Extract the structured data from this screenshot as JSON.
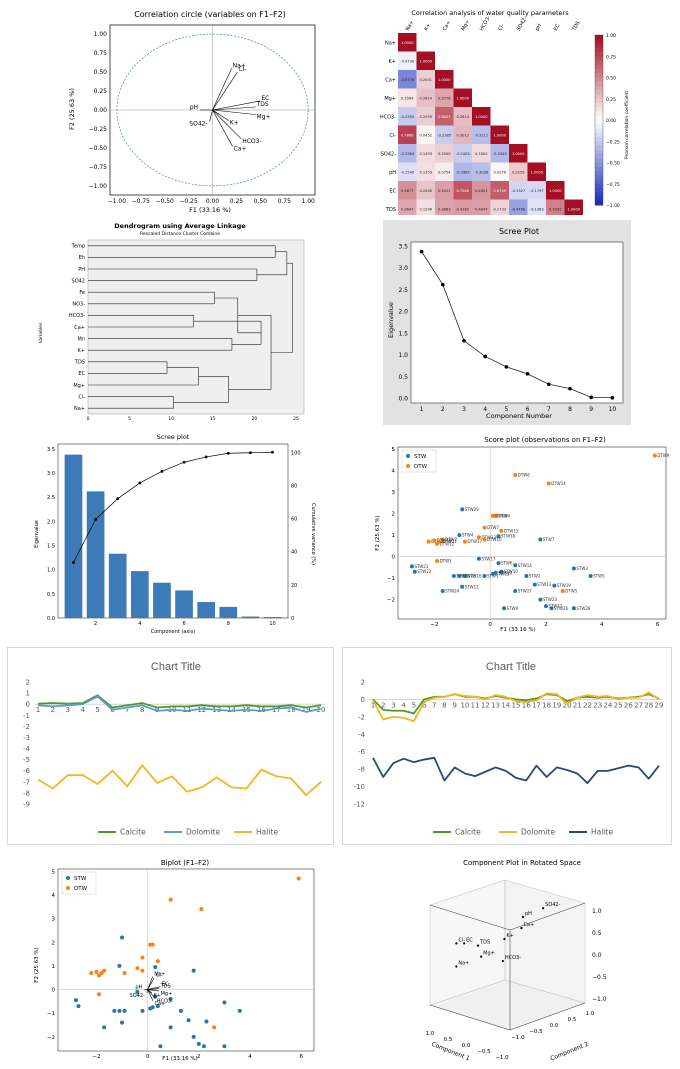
{
  "corr_circle": {
    "title": "Correlation circle (variables on F1–F2)",
    "xlabel": "F1 (33.16 %)",
    "ylabel": "F2 (25.63 %)",
    "ticks": [
      "−1.00",
      "−0.75",
      "−0.50",
      "−0.25",
      "0.00",
      "0.25",
      "0.50",
      "0.75",
      "1.00"
    ],
    "xticks": [
      "−1.00",
      "−0.75",
      "−0.50",
      "−0.25",
      "0.00",
      "0.25",
      "0.50",
      "0.75",
      "1.00"
    ]
  },
  "heatmap": {
    "title": "Correlation analysis of water quality parameters",
    "colorbar_label": "Pearson correlation coefficient",
    "cbar_ticks": [
      "1.00",
      "0.75",
      "0.50",
      "0.25",
      "0.00",
      "−0.25",
      "−0.50",
      "−0.75",
      "−1.00"
    ]
  },
  "dendrogram": {
    "title": "Dendrogram using Average Linkage",
    "subtitle": "Rescaled Distance Cluster Combine",
    "ylabel": "Variables",
    "xticks": [
      "0",
      "5",
      "10",
      "15",
      "20",
      "25"
    ]
  },
  "scree1": {
    "title": "Scree Plot",
    "xlabel": "Component Number",
    "ylabel": "Eigenvalue"
  },
  "scree2": {
    "title": "Scree plot",
    "xlabel": "Component (axis)",
    "ylabel": "Eigenvalue",
    "ylabel2": "Cumulative variance (%)"
  },
  "score": {
    "title": "Score plot (observations on F1–F2)",
    "xlabel": "F1 (33.16 %)",
    "ylabel": "F2 (25.63 %)",
    "legend": [
      "STW",
      "DTW"
    ]
  },
  "line1": {
    "title": "Chart Title",
    "legend": [
      "Calcite",
      "Dolomite",
      "Halite"
    ]
  },
  "line2": {
    "title": "Chart Title",
    "legend": [
      "Calcite",
      "Dolomite",
      "Halite"
    ]
  },
  "biplot": {
    "title": "Biplot (F1–F2)",
    "xlabel": "F1 (33.16 %)",
    "ylabel": "F2 (25.63 %)",
    "legend": [
      "STW",
      "DTW"
    ]
  },
  "comp3d": {
    "title": "Component Plot in Rotated Space",
    "xlabel": "Component 1",
    "ylabel": "Component 2"
  },
  "chart_data": [
    {
      "type": "scatter",
      "id": "correlation-circle",
      "title": "Correlation circle (variables on F1–F2)",
      "xlabel": "F1 (33.16 %)",
      "ylabel": "F2 (25.63 %)",
      "xlim": [
        -1,
        1
      ],
      "ylim": [
        -1,
        1
      ],
      "vectors": [
        {
          "name": "Na+",
          "x": 0.2,
          "y": 0.55
        },
        {
          "name": "Cl-",
          "x": 0.26,
          "y": 0.5
        },
        {
          "name": "EC",
          "x": 0.5,
          "y": 0.12
        },
        {
          "name": "TDS",
          "x": 0.45,
          "y": 0.04
        },
        {
          "name": "Mg+",
          "x": 0.45,
          "y": -0.06
        },
        {
          "name": "pH",
          "x": -0.13,
          "y": 0.0
        },
        {
          "name": "K+",
          "x": 0.17,
          "y": -0.14
        },
        {
          "name": "SO42-",
          "x": -0.03,
          "y": -0.15
        },
        {
          "name": "HCO3-",
          "x": 0.3,
          "y": -0.38
        },
        {
          "name": "Ca+",
          "x": 0.21,
          "y": -0.48
        }
      ]
    },
    {
      "type": "heatmap",
      "id": "correlation-heatmap",
      "title": "Correlation analysis of water quality parameters",
      "variables": [
        "Na+",
        "K+",
        "Ca+",
        "Mg+",
        "HCO3-",
        "Cl-",
        "SO42-",
        "pH",
        "EC",
        "TDS"
      ],
      "matrix": [
        [
          1.0
        ],
        [
          -0.073,
          1.0
        ],
        [
          -0.5776,
          0.2031,
          1.0
        ],
        [
          0.1064,
          0.2614,
          0.3776,
          1.0
        ],
        [
          -0.2505,
          0.2059,
          0.6627,
          0.2814,
          1.0
        ],
        [
          0.7866,
          0.0452,
          -0.2385,
          0.3012,
          -0.3111,
          1.0
        ],
        [
          -0.3363,
          0.1493,
          0.205,
          -0.2403,
          0.1604,
          -0.3343,
          1.0
        ],
        [
          -0.154,
          0.1359,
          0.0754,
          -0.3385,
          -0.3036,
          0.0276,
          0.2259,
          1.0
        ],
        [
          0.4677,
          0.244,
          0.4021,
          0.704,
          0.4401,
          0.6749,
          -0.1927,
          -0.1797,
          1.0
        ],
        [
          0.3647,
          0.1296,
          0.3883,
          0.4162,
          0.4047,
          0.1733,
          -0.4456,
          -0.1363,
          0.5292,
          1.0
        ]
      ],
      "range": [
        -1,
        1
      ]
    },
    {
      "type": "dendrogram",
      "id": "dendrogram",
      "title": "Dendrogram using Average Linkage",
      "subtitle": "Rescaled Distance Cluster Combine",
      "leaves": [
        "Temp",
        "Eh",
        "PH",
        "SO42",
        "Fe",
        "NO3-",
        "HCO3-",
        "Ca+",
        "Mn",
        "K+",
        "TDS",
        "EC",
        "Mg+",
        "Cl-",
        "Na+"
      ],
      "xlim": [
        0,
        25
      ],
      "merges": [
        {
          "a": 0,
          "b": 1,
          "h": 22.5
        },
        {
          "a": 2,
          "b": 3,
          "h": 20.3
        },
        {
          "a": 10,
          "b": 11,
          "h": 9.5
        },
        {
          "a": 13,
          "b": 14,
          "h": 10.3
        },
        {
          "a": 6,
          "b": 7,
          "h": 12.7
        },
        {
          "a": 4,
          "b": 5,
          "h": 15.2
        },
        {
          "a": 8,
          "b": 9,
          "h": 17.3
        },
        {
          "a": "10-11",
          "b": 12,
          "h": 13.3
        },
        {
          "a": "10-12",
          "b": "13-14",
          "h": 16.9
        },
        {
          "a": "6-7",
          "b": "8-9",
          "h": 20.8
        },
        {
          "a": "4-5",
          "b": "6-9",
          "h": 18.0
        },
        {
          "a": "4-9",
          "b": "10-14",
          "h": 22.0
        },
        {
          "a": "0-1",
          "b": "2-3",
          "h": 23.9
        },
        {
          "a": "0-3",
          "b": "4-14",
          "h": 24.6
        }
      ]
    },
    {
      "type": "line",
      "id": "scree-plot-1",
      "title": "Scree Plot",
      "xlabel": "Component Number",
      "ylabel": "Eigenvalue",
      "x": [
        1,
        2,
        3,
        4,
        5,
        6,
        7,
        8,
        9,
        10
      ],
      "values": [
        3.38,
        2.62,
        1.33,
        0.97,
        0.73,
        0.57,
        0.33,
        0.23,
        0.03,
        0.02
      ],
      "xlim": [
        0.5,
        10.5
      ],
      "ylim": [
        -0.1,
        3.6
      ]
    },
    {
      "type": "bar",
      "id": "scree-plot-2",
      "title": "Scree plot",
      "xlabel": "Component (axis)",
      "ylabel": "Eigenvalue",
      "ylabel2": "Cumulative variance (%)",
      "x": [
        1,
        2,
        3,
        4,
        5,
        6,
        7,
        8,
        9,
        10
      ],
      "values": [
        3.38,
        2.62,
        1.33,
        0.97,
        0.73,
        0.57,
        0.33,
        0.23,
        0.03,
        0.02
      ],
      "cumulative": [
        33.5,
        59.5,
        72.0,
        81.5,
        88.5,
        94.0,
        97.2,
        99.4,
        99.7,
        100
      ],
      "ylim": [
        0,
        3.6
      ],
      "ylim2": [
        0,
        105
      ]
    },
    {
      "type": "scatter",
      "id": "score-plot",
      "title": "Score plot (observations on F1–F2)",
      "xlabel": "F1 (33.16 %)",
      "ylabel": "F2 (25.63 %)",
      "xlim": [
        -3.3,
        6.3
      ],
      "ylim": [
        -2.9,
        5.1
      ],
      "series": [
        {
          "name": "STW",
          "color": "#1f77b4",
          "points": [
            {
              "l": "STW1",
              "x": -0.2,
              "y": -0.9
            },
            {
              "l": "STW2",
              "x": 1.3,
              "y": -0.9
            },
            {
              "l": "STW3",
              "x": 3.0,
              "y": -0.55
            },
            {
              "l": "STW4",
              "x": -1.1,
              "y": 1.0
            },
            {
              "l": "STW5",
              "x": 3.6,
              "y": -0.9
            },
            {
              "l": "STW6",
              "x": 0.3,
              "y": -0.3
            },
            {
              "l": "STW7",
              "x": 1.8,
              "y": 0.8
            },
            {
              "l": "STW8",
              "x": -1.3,
              "y": -0.9
            },
            {
              "l": "STW9",
              "x": 0.5,
              "y": -2.4
            },
            {
              "l": "STW10",
              "x": 0.4,
              "y": -0.7
            },
            {
              "l": "STW11",
              "x": -1.0,
              "y": -1.4
            },
            {
              "l": "STW12",
              "x": 2.0,
              "y": -2.3
            },
            {
              "l": "STW13",
              "x": 1.6,
              "y": -1.3
            },
            {
              "l": "STW14",
              "x": 0.9,
              "y": -0.4
            },
            {
              "l": "STW15",
              "x": 0.1,
              "y": -0.8
            },
            {
              "l": "STW16",
              "x": -0.9,
              "y": -0.9
            },
            {
              "l": "STW17",
              "x": -0.4,
              "y": -0.1
            },
            {
              "l": "STW18",
              "x": 0.3,
              "y": 0.95
            },
            {
              "l": "STW19",
              "x": 2.3,
              "y": -1.35
            },
            {
              "l": "STW20",
              "x": 0.2,
              "y": -0.75
            },
            {
              "l": "STW21",
              "x": -2.8,
              "y": -0.45
            },
            {
              "l": "STW22",
              "x": -2.7,
              "y": -0.7
            },
            {
              "l": "STW23",
              "x": 1.8,
              "y": -2.0
            },
            {
              "l": "STW24",
              "x": -1.7,
              "y": -1.6
            },
            {
              "l": "STW25",
              "x": -1.1,
              "y": -0.9
            },
            {
              "l": "STW26",
              "x": 2.2,
              "y": -2.4
            },
            {
              "l": "STW27",
              "x": 0.9,
              "y": -1.6
            },
            {
              "l": "STW28",
              "x": 3.0,
              "y": -2.4
            },
            {
              "l": "STW29",
              "x": -1.0,
              "y": 2.2
            }
          ]
        },
        {
          "name": "DTW",
          "color": "#ff7f0e",
          "points": [
            {
              "l": "DTW1",
              "x": -1.9,
              "y": -0.2
            },
            {
              "l": "DTW2",
              "x": -1.7,
              "y": 0.8
            },
            {
              "l": "DTW3",
              "x": -2.2,
              "y": 0.7
            },
            {
              "l": "DTW4",
              "x": 0.2,
              "y": 1.9
            },
            {
              "l": "DTW5",
              "x": 2.6,
              "y": -1.6
            },
            {
              "l": "DTW6",
              "x": 0.9,
              "y": 3.8
            },
            {
              "l": "DTW7",
              "x": -0.2,
              "y": 1.35
            },
            {
              "l": "DTW8",
              "x": 0.1,
              "y": 1.9
            },
            {
              "l": "DTW9",
              "x": 5.9,
              "y": 4.7
            },
            {
              "l": "DTW10",
              "x": -2.0,
              "y": 0.75
            },
            {
              "l": "DTW11",
              "x": -1.8,
              "y": 0.7
            },
            {
              "l": "DTW12",
              "x": -1.9,
              "y": 0.6
            },
            {
              "l": "DTW13",
              "x": -0.4,
              "y": 0.9
            },
            {
              "l": "DTW14",
              "x": 2.1,
              "y": 3.4
            },
            {
              "l": "DTW15",
              "x": 0.4,
              "y": 1.2
            },
            {
              "l": "DTW16",
              "x": -0.2,
              "y": 0.8
            },
            {
              "l": "DTW17",
              "x": -0.9,
              "y": 0.7
            }
          ]
        }
      ]
    },
    {
      "type": "line",
      "id": "saturation-index-1",
      "title": "Chart Title",
      "x": [
        1,
        2,
        3,
        4,
        5,
        6,
        7,
        8,
        9,
        10,
        11,
        12,
        13,
        14,
        15,
        16,
        17,
        18,
        19,
        20
      ],
      "ylim": [
        -9,
        2
      ],
      "series": [
        {
          "name": "Calcite",
          "color": "#4e9a2a",
          "values": [
            0.05,
            0.1,
            0.05,
            0.1,
            0.8,
            -0.3,
            -0.1,
            0.1,
            -0.3,
            -0.2,
            -0.2,
            -0.1,
            -0.2,
            -0.2,
            -0.1,
            -0.2,
            -0.2,
            -0.1,
            -0.3,
            -0.1
          ]
        },
        {
          "name": "Dolomite",
          "color": "#5b9bd5",
          "values": [
            -0.1,
            -0.2,
            -0.1,
            0.0,
            0.7,
            -0.5,
            -0.3,
            -0.1,
            -0.6,
            -0.5,
            -0.6,
            -0.4,
            -0.5,
            -0.6,
            -0.5,
            -0.6,
            -0.4,
            -0.3,
            -0.7,
            -0.4
          ]
        },
        {
          "name": "Halite",
          "color": "#f4b51f",
          "values": [
            -6.8,
            -7.6,
            -6.4,
            -6.4,
            -7.2,
            -6.0,
            -7.4,
            -5.5,
            -7.1,
            -6.5,
            -7.9,
            -7.5,
            -6.6,
            -7.5,
            -7.6,
            -5.9,
            -6.5,
            -6.7,
            -8.2,
            -7.0
          ]
        }
      ]
    },
    {
      "type": "line",
      "id": "saturation-index-2",
      "title": "Chart Title",
      "x": [
        1,
        2,
        3,
        4,
        5,
        6,
        7,
        8,
        9,
        10,
        11,
        12,
        13,
        14,
        15,
        16,
        17,
        18,
        19,
        20,
        21,
        22,
        23,
        24,
        25,
        26,
        27,
        28,
        29
      ],
      "ylim": [
        -12,
        2
      ],
      "series": [
        {
          "name": "Calcite",
          "color": "#4e9a2a",
          "values": [
            0.0,
            -1.2,
            -1.3,
            -1.3,
            -1.6,
            0.0,
            0.3,
            0.3,
            0.6,
            0.3,
            0.3,
            0.1,
            0.4,
            0.2,
            0.0,
            -0.1,
            0.1,
            0.6,
            0.5,
            -0.2,
            0.2,
            0.3,
            0.2,
            0.3,
            0.1,
            0.2,
            0.3,
            0.6,
            0.1
          ]
        },
        {
          "name": "Dolomite",
          "color": "#f4b51f",
          "values": [
            -0.1,
            -2.3,
            -2.0,
            -2.1,
            -2.5,
            -0.3,
            0.2,
            0.3,
            0.6,
            0.4,
            0.3,
            0.0,
            0.5,
            0.3,
            -0.2,
            -0.3,
            -0.1,
            0.7,
            0.6,
            -0.5,
            0.2,
            0.5,
            0.3,
            0.4,
            0.0,
            0.2,
            0.2,
            0.8,
            0.0
          ]
        },
        {
          "name": "Halite",
          "color": "#1f4e79",
          "values": [
            -6.7,
            -8.9,
            -7.3,
            -6.8,
            -7.2,
            -6.9,
            -6.7,
            -9.3,
            -7.8,
            -8.5,
            -8.8,
            -8.3,
            -7.8,
            -8.2,
            -9.0,
            -9.3,
            -7.6,
            -8.9,
            -7.8,
            -8.1,
            -8.5,
            -9.6,
            -8.2,
            -8.2,
            -7.9,
            -7.6,
            -7.8,
            -9.1,
            -7.6
          ]
        }
      ]
    },
    {
      "type": "scatter",
      "id": "biplot",
      "title": "Biplot (F1–F2)",
      "xlabel": "F1 (33.16 %)",
      "ylabel": "F2 (25.63 %)",
      "xlim": [
        -3.5,
        6.5
      ],
      "ylim": [
        -2.6,
        5.1
      ],
      "series_ref": "score-plot",
      "vector_scale": 1.0
    },
    {
      "type": "scatter3d",
      "id": "component-3d",
      "title": "Component Plot in Rotated Space",
      "xlabel": "Component 1",
      "ylabel": "Component 2",
      "axis_ticks": [
        "1.0",
        "0.5",
        "0.0",
        "−0.5",
        "−1.0"
      ],
      "points": [
        {
          "name": "SO42-",
          "u": 0.73,
          "v": 0.12
        },
        {
          "name": "pH",
          "u": 0.6,
          "v": 0.2
        },
        {
          "name": "Ca+",
          "u": 0.59,
          "v": 0.3
        },
        {
          "name": "K+",
          "u": 0.48,
          "v": 0.4
        },
        {
          "name": "Cl-",
          "u": 0.17,
          "v": 0.44
        },
        {
          "name": "EC",
          "u": 0.22,
          "v": 0.44
        },
        {
          "name": "TDS",
          "u": 0.31,
          "v": 0.46
        },
        {
          "name": "Mg+",
          "u": 0.33,
          "v": 0.56
        },
        {
          "name": "HCO3-",
          "u": 0.47,
          "v": 0.6
        },
        {
          "name": "Na+",
          "u": 0.17,
          "v": 0.65
        }
      ]
    }
  ]
}
